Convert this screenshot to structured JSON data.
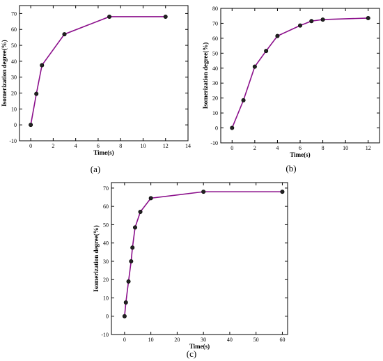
{
  "chart_data": [
    {
      "id": "a",
      "type": "line",
      "panel_label": "(a)",
      "xlabel": "Time(s)",
      "ylabel": "Isomerization degree(%)",
      "xlim": [
        -1,
        14
      ],
      "ylim": [
        -10,
        75
      ],
      "xticks": [
        0,
        2,
        4,
        6,
        8,
        10,
        12,
        14
      ],
      "yticks": [
        -10,
        0,
        10,
        20,
        30,
        40,
        50,
        60,
        70
      ],
      "x": [
        0,
        0.5,
        1,
        3,
        7,
        12
      ],
      "series": [
        {
          "values": [
            0,
            19.5,
            37.5,
            57,
            68,
            68
          ]
        }
      ],
      "color": "#8b0f8b"
    },
    {
      "id": "b",
      "type": "line",
      "panel_label": "(b)",
      "xlabel": "Time(s)",
      "ylabel": "Isomerization degree(%)",
      "xlim": [
        -1,
        13
      ],
      "ylim": [
        -10,
        80
      ],
      "xticks": [
        0,
        2,
        4,
        6,
        8,
        10,
        12
      ],
      "yticks": [
        -10,
        0,
        10,
        20,
        30,
        40,
        50,
        60,
        70,
        80
      ],
      "x": [
        0,
        1,
        2,
        3,
        4,
        6,
        7,
        8,
        12
      ],
      "series": [
        {
          "values": [
            0,
            18.5,
            41,
            51.5,
            61.5,
            68.5,
            71.5,
            72.5,
            73.5
          ]
        }
      ],
      "color": "#8b0f8b"
    },
    {
      "id": "c",
      "type": "line",
      "panel_label": "(c)",
      "xlabel": "Time(s)",
      "ylabel": "Isomerization degree(%)",
      "xlim": [
        -5,
        62
      ],
      "ylim": [
        -10,
        73
      ],
      "xticks": [
        0,
        10,
        20,
        30,
        40,
        50,
        60
      ],
      "yticks": [
        -10,
        0,
        10,
        20,
        30,
        40,
        50,
        60,
        70
      ],
      "x": [
        0,
        0.5,
        1.5,
        2.5,
        3,
        4,
        6,
        10,
        30,
        60
      ],
      "series": [
        {
          "values": [
            0,
            7.5,
            19,
            30,
            37.5,
            48.5,
            57,
            64.5,
            68,
            68
          ]
        }
      ],
      "color": "#8b0f8b"
    }
  ]
}
